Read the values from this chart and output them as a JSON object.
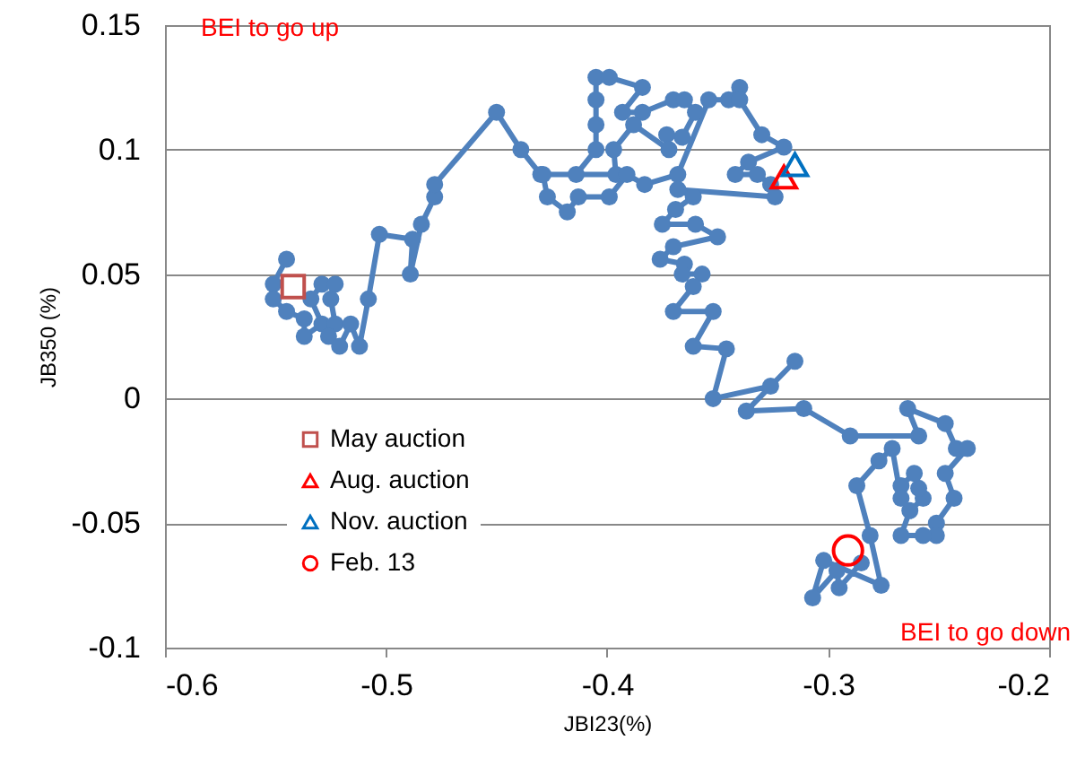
{
  "chart_data": {
    "type": "line",
    "xlabel": "JBI23(%)",
    "ylabel": "JB350 (%)",
    "xlim": [
      -0.6,
      -0.2
    ],
    "xticks": [
      -0.6,
      -0.5,
      -0.4,
      -0.3,
      -0.2
    ],
    "ylim": [
      -0.1,
      0.15
    ],
    "yticks": [
      -0.1,
      -0.05,
      0,
      0.05,
      0.1,
      0.15
    ],
    "grid": "y",
    "legend": "bottom left",
    "marker": "circle",
    "annotations": [
      "BEI to go up",
      "BEI to go down"
    ],
    "series": [
      {
        "color": "#4f81bd",
        "x": [
          -0.545,
          -0.551,
          -0.551,
          -0.545,
          -0.537,
          -0.537,
          -0.529,
          -0.534,
          -0.529,
          -0.523,
          -0.525,
          -0.523,
          -0.526,
          -0.521,
          -0.516,
          -0.512,
          -0.508,
          -0.503,
          -0.488,
          -0.489,
          -0.484,
          -0.478,
          -0.478,
          -0.45,
          -0.439,
          -0.43,
          -0.414,
          -0.405,
          -0.405,
          -0.405,
          -0.405,
          -0.399,
          -0.384,
          -0.393,
          -0.384,
          -0.37,
          -0.365,
          -0.36,
          -0.366,
          -0.373,
          -0.372,
          -0.388,
          -0.397,
          -0.396,
          -0.429,
          -0.427,
          -0.418,
          -0.413,
          -0.399,
          -0.391,
          -0.383,
          -0.368,
          -0.354,
          -0.345,
          -0.34,
          -0.34,
          -0.33,
          -0.32,
          -0.336,
          -0.342,
          -0.332,
          -0.326,
          -0.324,
          -0.368,
          -0.361,
          -0.369,
          -0.375,
          -0.36,
          -0.35,
          -0.37,
          -0.376,
          -0.365,
          -0.366,
          -0.357,
          -0.361,
          -0.37,
          -0.352,
          -0.361,
          -0.346,
          -0.352,
          -0.326,
          -0.315,
          -0.337,
          -0.311,
          -0.29,
          -0.259,
          -0.264,
          -0.247,
          -0.242,
          -0.237,
          -0.247,
          -0.243,
          -0.251,
          -0.251,
          -0.257,
          -0.267,
          -0.263,
          -0.257,
          -0.259,
          -0.261,
          -0.267,
          -0.267,
          -0.271,
          -0.277,
          -0.287,
          -0.281,
          -0.276,
          -0.302,
          -0.307,
          -0.296,
          -0.295,
          -0.285
        ],
        "values": [
          0.056,
          0.046,
          0.04,
          0.035,
          0.032,
          0.025,
          0.03,
          0.04,
          0.046,
          0.046,
          0.04,
          0.03,
          0.025,
          0.021,
          0.03,
          0.021,
          0.04,
          0.066,
          0.064,
          0.05,
          0.07,
          0.081,
          0.086,
          0.115,
          0.1,
          0.09,
          0.09,
          0.1,
          0.11,
          0.12,
          0.129,
          0.129,
          0.125,
          0.115,
          0.115,
          0.12,
          0.12,
          0.115,
          0.105,
          0.106,
          0.1,
          0.11,
          0.1,
          0.09,
          0.09,
          0.081,
          0.075,
          0.081,
          0.081,
          0.09,
          0.086,
          0.09,
          0.12,
          0.12,
          0.125,
          0.12,
          0.106,
          0.101,
          0.095,
          0.09,
          0.09,
          0.086,
          0.081,
          0.084,
          0.081,
          0.076,
          0.07,
          0.07,
          0.065,
          0.061,
          0.056,
          0.054,
          0.05,
          0.05,
          0.045,
          0.035,
          0.035,
          0.021,
          0.02,
          0,
          0.005,
          0.015,
          -0.005,
          -0.004,
          -0.015,
          -0.015,
          -0.004,
          -0.01,
          -0.02,
          -0.02,
          -0.03,
          -0.04,
          -0.05,
          -0.055,
          -0.055,
          -0.055,
          -0.045,
          -0.04,
          -0.036,
          -0.03,
          -0.035,
          -0.04,
          -0.02,
          -0.025,
          -0.035,
          -0.055,
          -0.075,
          -0.065,
          -0.08,
          -0.069,
          -0.076,
          -0.066
        ]
      },
      {
        "type": "scatter",
        "name": "May auction",
        "marker": "square",
        "color": "#c0504d",
        "x": [
          -0.542
        ],
        "values": [
          0.045
        ]
      },
      {
        "type": "scatter",
        "name": "Aug. auction",
        "marker": "triangle",
        "color": "#ff0000",
        "x": [
          -0.32
        ],
        "values": [
          0.089
        ]
      },
      {
        "type": "scatter",
        "name": "Nov. auction",
        "marker": "triangle",
        "color": "#0070c0",
        "x": [
          -0.315
        ],
        "values": [
          0.094
        ]
      },
      {
        "type": "scatter",
        "name": "Feb. 13",
        "marker": "circle",
        "color": "#ff0000",
        "x": [
          -0.291
        ],
        "values": [
          -0.061
        ]
      }
    ]
  }
}
